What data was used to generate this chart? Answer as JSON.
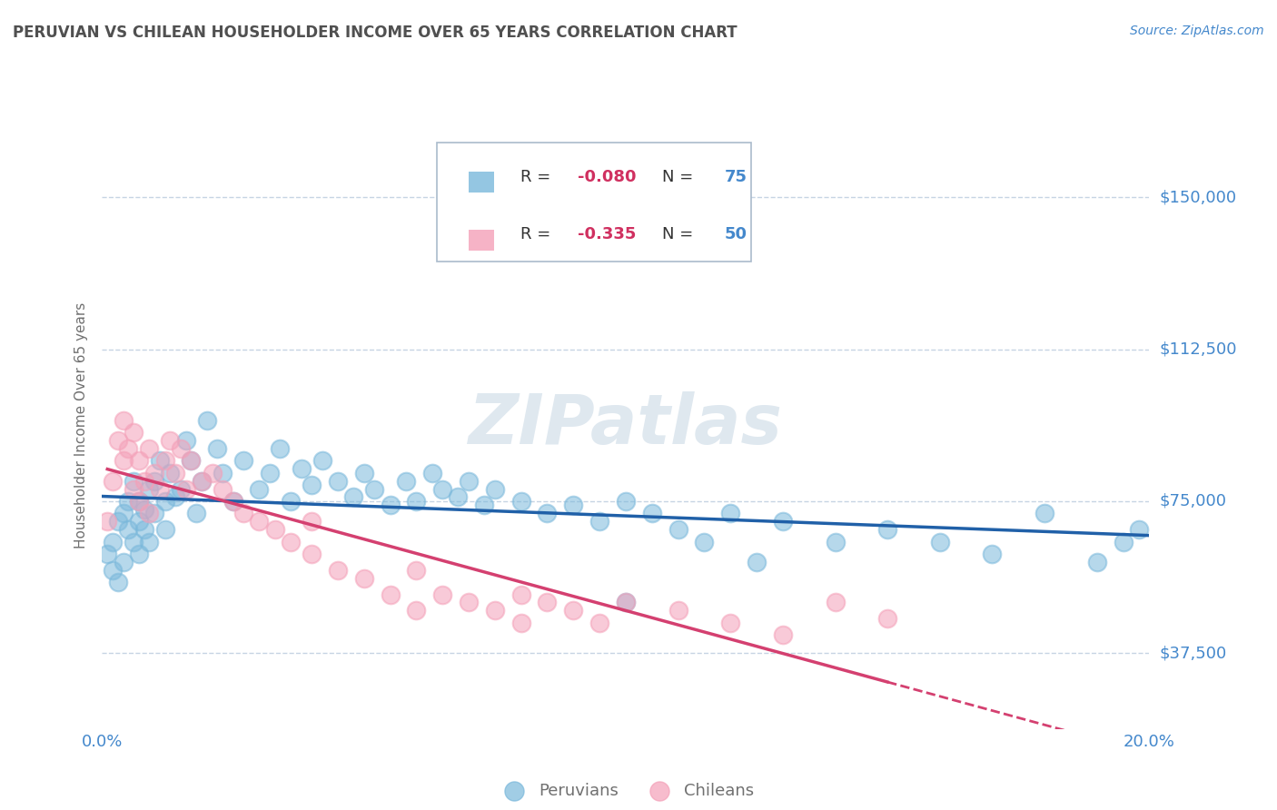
{
  "title": "PERUVIAN VS CHILEAN HOUSEHOLDER INCOME OVER 65 YEARS CORRELATION CHART",
  "source": "Source: ZipAtlas.com",
  "ylabel": "Householder Income Over 65 years",
  "xlim": [
    0.0,
    0.2
  ],
  "ylim": [
    18750,
    168750
  ],
  "yticks": [
    37500,
    75000,
    112500,
    150000
  ],
  "ytick_labels": [
    "$37,500",
    "$75,000",
    "$112,500",
    "$150,000"
  ],
  "xticks": [
    0.0,
    0.05,
    0.1,
    0.15,
    0.2
  ],
  "xtick_labels": [
    "0.0%",
    "",
    "",
    "",
    "20.0%"
  ],
  "peruvian_color": "#7ab8db",
  "chilean_color": "#f4a0b8",
  "peruvian_line_color": "#2060a8",
  "chilean_line_color": "#d44070",
  "background_color": "#ffffff",
  "grid_color": "#c0d0e0",
  "title_color": "#505050",
  "axis_label_color": "#707070",
  "tick_label_color": "#4488cc",
  "watermark": "ZIPatlas",
  "watermark_color": "#b8ccdd",
  "peruvian_x": [
    0.001,
    0.002,
    0.002,
    0.003,
    0.003,
    0.004,
    0.004,
    0.005,
    0.005,
    0.006,
    0.006,
    0.007,
    0.007,
    0.007,
    0.008,
    0.008,
    0.009,
    0.009,
    0.01,
    0.01,
    0.011,
    0.012,
    0.012,
    0.013,
    0.014,
    0.015,
    0.016,
    0.017,
    0.018,
    0.019,
    0.02,
    0.022,
    0.023,
    0.025,
    0.027,
    0.03,
    0.032,
    0.034,
    0.036,
    0.038,
    0.04,
    0.042,
    0.045,
    0.048,
    0.05,
    0.052,
    0.055,
    0.058,
    0.06,
    0.063,
    0.065,
    0.068,
    0.07,
    0.073,
    0.075,
    0.08,
    0.085,
    0.09,
    0.095,
    0.1,
    0.105,
    0.11,
    0.12,
    0.13,
    0.14,
    0.15,
    0.16,
    0.17,
    0.18,
    0.19,
    0.195,
    0.198,
    0.1,
    0.115,
    0.125
  ],
  "peruvian_y": [
    62000,
    58000,
    65000,
    70000,
    55000,
    72000,
    60000,
    68000,
    75000,
    65000,
    80000,
    70000,
    62000,
    75000,
    68000,
    73000,
    78000,
    65000,
    72000,
    80000,
    85000,
    75000,
    68000,
    82000,
    76000,
    78000,
    90000,
    85000,
    72000,
    80000,
    95000,
    88000,
    82000,
    75000,
    85000,
    78000,
    82000,
    88000,
    75000,
    83000,
    79000,
    85000,
    80000,
    76000,
    82000,
    78000,
    74000,
    80000,
    75000,
    82000,
    78000,
    76000,
    80000,
    74000,
    78000,
    75000,
    72000,
    74000,
    70000,
    75000,
    72000,
    68000,
    72000,
    70000,
    65000,
    68000,
    65000,
    62000,
    72000,
    60000,
    65000,
    68000,
    50000,
    65000,
    60000
  ],
  "chilean_x": [
    0.001,
    0.002,
    0.003,
    0.004,
    0.004,
    0.005,
    0.006,
    0.006,
    0.007,
    0.007,
    0.008,
    0.009,
    0.009,
    0.01,
    0.011,
    0.012,
    0.013,
    0.014,
    0.015,
    0.016,
    0.017,
    0.019,
    0.021,
    0.023,
    0.025,
    0.027,
    0.03,
    0.033,
    0.036,
    0.04,
    0.045,
    0.05,
    0.055,
    0.06,
    0.065,
    0.07,
    0.075,
    0.08,
    0.085,
    0.09,
    0.095,
    0.1,
    0.11,
    0.12,
    0.13,
    0.14,
    0.15,
    0.04,
    0.06,
    0.08
  ],
  "chilean_y": [
    70000,
    80000,
    90000,
    85000,
    95000,
    88000,
    92000,
    78000,
    85000,
    75000,
    80000,
    88000,
    72000,
    82000,
    78000,
    85000,
    90000,
    82000,
    88000,
    78000,
    85000,
    80000,
    82000,
    78000,
    75000,
    72000,
    70000,
    68000,
    65000,
    62000,
    58000,
    56000,
    52000,
    48000,
    52000,
    50000,
    48000,
    45000,
    50000,
    48000,
    45000,
    50000,
    48000,
    45000,
    42000,
    50000,
    46000,
    70000,
    58000,
    52000
  ]
}
